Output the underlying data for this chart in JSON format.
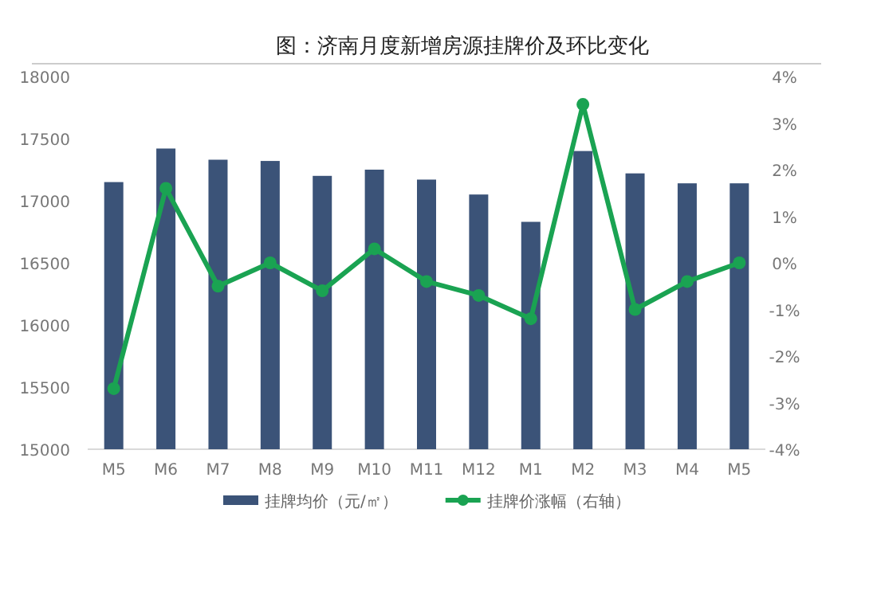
{
  "chart_data": {
    "type": "bar",
    "title": "图：济南月度新增房源挂牌价及环比变化",
    "categories": [
      "M5",
      "M6",
      "M7",
      "M8",
      "M9",
      "M10",
      "M11",
      "M12",
      "M1",
      "M2",
      "M3",
      "M4",
      "M5"
    ],
    "series": [
      {
        "name": "挂牌均价（元/㎡）",
        "color": "#3b5378",
        "values": [
          17150,
          17420,
          17330,
          17320,
          17200,
          17250,
          17170,
          17050,
          16830,
          17400,
          17220,
          17140,
          17140
        ]
      },
      {
        "name": "挂牌价涨幅（右轴）",
        "type": "line",
        "axis": "y2",
        "color": "#1aa352",
        "marker": "circle",
        "values": [
          -2.7,
          1.6,
          -0.5,
          0.0,
          -0.6,
          0.3,
          -0.4,
          -0.7,
          -1.2,
          3.4,
          -1.0,
          -0.4,
          0.0
        ]
      }
    ],
    "ylim": [
      15000,
      18000
    ],
    "yticks": [
      15000,
      15500,
      16000,
      16500,
      17000,
      17500,
      18000
    ],
    "y2lim": [
      -4,
      4
    ],
    "y2ticks": [
      {
        "value": -4,
        "label": "-4%"
      },
      {
        "value": -3,
        "label": "-3%"
      },
      {
        "value": -2,
        "label": "-2%"
      },
      {
        "value": -1,
        "label": "-1%"
      },
      {
        "value": 0,
        "label": "0%"
      },
      {
        "value": 1,
        "label": "1%"
      },
      {
        "value": 2,
        "label": "2%"
      },
      {
        "value": 3,
        "label": "3%"
      },
      {
        "value": 4,
        "label": "4%"
      }
    ],
    "grid": false,
    "legend": "bottom"
  }
}
